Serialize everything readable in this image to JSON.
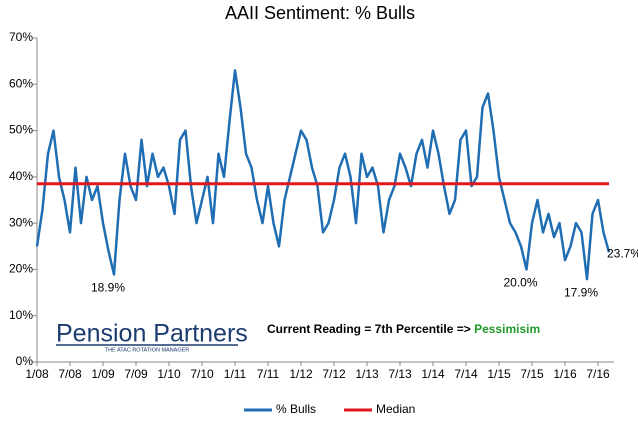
{
  "chart_data": {
    "type": "line",
    "title": "AAII Sentiment: % Bulls",
    "categories": [
      "1/08",
      null,
      null,
      null,
      null,
      null,
      "7/08",
      null,
      null,
      null,
      null,
      null,
      "1/09",
      null,
      null,
      null,
      null,
      null,
      "7/09",
      null,
      null,
      null,
      null,
      null,
      "1/10",
      null,
      null,
      null,
      null,
      null,
      "7/10",
      null,
      null,
      null,
      null,
      null,
      "1/11",
      null,
      null,
      null,
      null,
      null,
      "7/11",
      null,
      null,
      null,
      null,
      null,
      "1/12",
      null,
      null,
      null,
      null,
      null,
      "7/12",
      null,
      null,
      null,
      null,
      null,
      "1/13",
      null,
      null,
      null,
      null,
      null,
      "7/13",
      null,
      null,
      null,
      null,
      null,
      "1/14",
      null,
      null,
      null,
      null,
      null,
      "7/14",
      null,
      null,
      null,
      null,
      null,
      "1/15",
      null,
      null,
      null,
      null,
      null,
      "7/15",
      null,
      null,
      null,
      null,
      null,
      "1/16",
      null,
      null,
      null,
      null,
      null,
      "7/16",
      null,
      null
    ],
    "series": [
      {
        "name": "% Bulls",
        "color": "#1f6db3",
        "values": [
          25,
          33,
          45,
          50,
          40,
          35,
          28,
          42,
          30,
          40,
          35,
          38,
          30,
          24,
          18.9,
          35,
          45,
          38,
          35,
          48,
          38,
          45,
          40,
          42,
          38,
          32,
          48,
          50,
          38,
          30,
          35,
          40,
          30,
          45,
          40,
          52,
          63,
          55,
          45,
          42,
          35,
          30,
          38,
          30,
          25,
          35,
          40,
          45,
          50,
          48,
          42,
          38,
          28,
          30,
          35,
          42,
          45,
          40,
          30,
          45,
          40,
          42,
          38,
          28,
          35,
          38,
          45,
          42,
          38,
          45,
          48,
          42,
          50,
          45,
          38,
          32,
          35,
          48,
          50,
          38,
          40,
          55,
          58,
          50,
          40,
          35,
          30,
          28,
          25,
          20.0,
          30,
          35,
          28,
          32,
          27,
          30,
          22,
          25,
          30,
          28,
          17.9,
          32,
          35,
          28,
          23.7
        ],
        "value_labels": [
          null,
          null,
          null,
          null,
          null,
          null,
          null,
          null,
          null,
          null,
          null,
          null,
          null,
          null,
          "18.9%",
          null,
          null,
          null,
          null,
          null,
          null,
          null,
          null,
          null,
          null,
          null,
          null,
          null,
          null,
          null,
          null,
          null,
          null,
          null,
          null,
          null,
          null,
          null,
          null,
          null,
          null,
          null,
          null,
          null,
          null,
          null,
          null,
          null,
          null,
          null,
          null,
          null,
          null,
          null,
          null,
          null,
          null,
          null,
          null,
          null,
          null,
          null,
          null,
          null,
          null,
          null,
          null,
          null,
          null,
          null,
          null,
          null,
          null,
          null,
          null,
          null,
          null,
          null,
          null,
          null,
          null,
          null,
          null,
          null,
          null,
          null,
          null,
          null,
          null,
          "20.0%",
          null,
          null,
          null,
          null,
          null,
          null,
          null,
          null,
          null,
          null,
          "17.9%",
          null,
          null,
          null,
          "23.7%"
        ]
      },
      {
        "name": "Median",
        "color": "#e3161b",
        "values": [
          38.5,
          38.5,
          38.5,
          38.5,
          38.5,
          38.5,
          38.5,
          38.5,
          38.5,
          38.5,
          38.5,
          38.5,
          38.5,
          38.5,
          38.5,
          38.5,
          38.5,
          38.5,
          38.5,
          38.5,
          38.5,
          38.5,
          38.5,
          38.5,
          38.5,
          38.5,
          38.5,
          38.5,
          38.5,
          38.5,
          38.5,
          38.5,
          38.5,
          38.5,
          38.5,
          38.5,
          38.5,
          38.5,
          38.5,
          38.5,
          38.5,
          38.5,
          38.5,
          38.5,
          38.5,
          38.5,
          38.5,
          38.5,
          38.5,
          38.5,
          38.5,
          38.5,
          38.5,
          38.5,
          38.5,
          38.5,
          38.5,
          38.5,
          38.5,
          38.5,
          38.5,
          38.5,
          38.5,
          38.5,
          38.5,
          38.5,
          38.5,
          38.5,
          38.5,
          38.5,
          38.5,
          38.5,
          38.5,
          38.5,
          38.5,
          38.5,
          38.5,
          38.5,
          38.5,
          38.5,
          38.5,
          38.5,
          38.5,
          38.5,
          38.5,
          38.5,
          38.5,
          38.5,
          38.5,
          38.5,
          38.5,
          38.5,
          38.5,
          38.5,
          38.5,
          38.5,
          38.5,
          38.5,
          38.5,
          38.5,
          38.5,
          38.5,
          38.5,
          38.5,
          38.5
        ]
      }
    ],
    "ylim": [
      0,
      70
    ],
    "yticks": [
      {
        "value": 0,
        "label": "0%"
      },
      {
        "value": 10,
        "label": "10%"
      },
      {
        "value": 20,
        "label": "20%"
      },
      {
        "value": 30,
        "label": "30%"
      },
      {
        "value": 40,
        "label": "40%"
      },
      {
        "value": 50,
        "label": "50%"
      },
      {
        "value": 60,
        "label": "60%"
      },
      {
        "value": 70,
        "label": "70%"
      }
    ],
    "grid": false,
    "legend": "bottom",
    "annotation": {
      "text": "Current Reading = 7th Percentile => ",
      "highlight": "Pessimisim",
      "highlight_color": "#22992a"
    },
    "logo": {
      "name": "Pension Partners",
      "tagline": "THE ATAC ROTATION MANAGER"
    }
  }
}
